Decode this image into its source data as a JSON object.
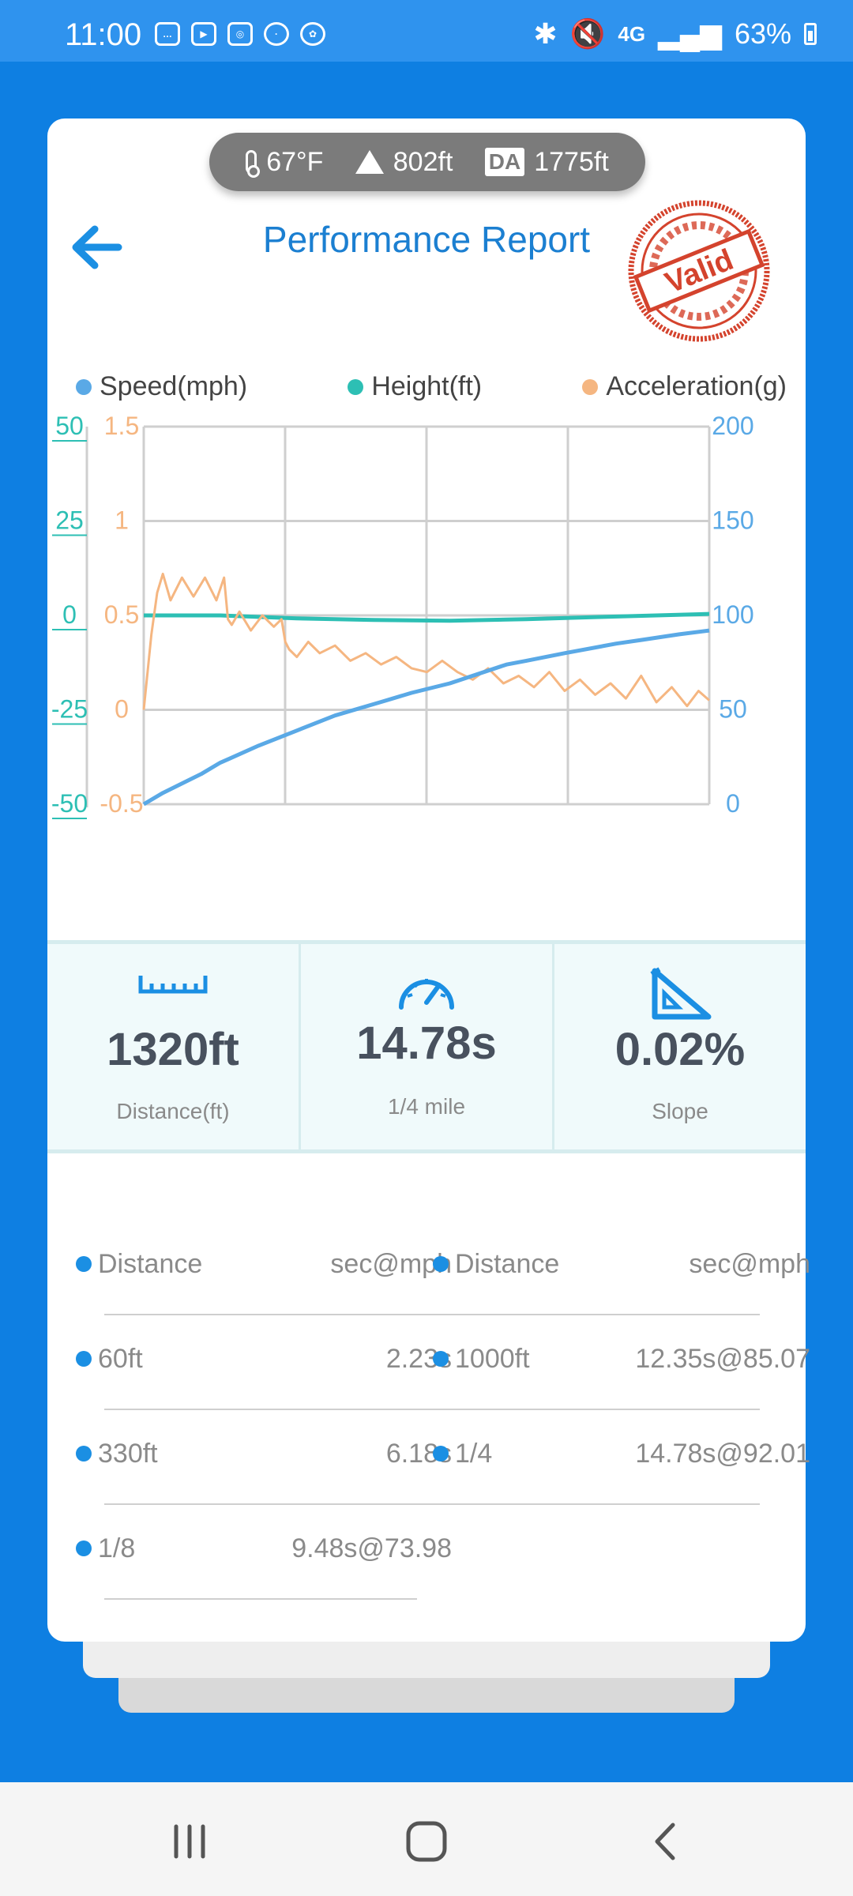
{
  "status_bar": {
    "time": "11:00",
    "network": "4G",
    "battery": "63%",
    "app_icons": [
      "messages-icon",
      "youtube-icon",
      "instagram-icon",
      "app-icon",
      "gallery-icon"
    ]
  },
  "header": {
    "temperature": "67°F",
    "altitude": "802ft",
    "da_label": "DA",
    "density_altitude": "1775ft",
    "title": "Performance Report",
    "stamp_text": "Valid"
  },
  "chart_data": {
    "type": "line",
    "legend": [
      "Speed(mph)",
      "Height(ft)",
      "Acceleration(g)"
    ],
    "height_axis": {
      "ticks": [
        "50",
        "25",
        "0",
        "-25",
        "-50"
      ],
      "range": [
        -50,
        50
      ]
    },
    "accel_axis": {
      "ticks": [
        "1.5",
        "1",
        "0.5",
        "0",
        "-0.5"
      ],
      "range": [
        -0.5,
        1.5
      ]
    },
    "speed_axis": {
      "ticks": [
        "200",
        "150",
        "100",
        "50",
        "0"
      ],
      "range": [
        0,
        200
      ]
    },
    "x_range": [
      0,
      14.78
    ],
    "series": [
      {
        "name": "Speed(mph)",
        "color": "#5aa9e6",
        "x": [
          0,
          0.5,
          1,
          1.5,
          2,
          2.23,
          3,
          4,
          5,
          6.18,
          7,
          8,
          9.48,
          10,
          11,
          12.35,
          13,
          14,
          14.78
        ],
        "y": [
          0,
          6,
          11,
          16,
          22,
          24,
          31,
          39,
          47,
          54,
          59,
          64,
          73.98,
          76,
          80,
          85.07,
          87,
          90,
          92.01
        ]
      },
      {
        "name": "Height(ft)",
        "color": "#2dbfb4",
        "x": [
          0,
          2,
          4,
          6,
          8,
          10,
          12,
          14.78
        ],
        "y": [
          0,
          0,
          -0.8,
          -1.2,
          -1.4,
          -1.0,
          -0.4,
          0.4
        ]
      },
      {
        "name": "Acceleration(g)",
        "color": "#f5b681",
        "x": [
          0,
          0.2,
          0.35,
          0.5,
          0.7,
          1,
          1.3,
          1.6,
          1.9,
          2.1,
          2.2,
          2.3,
          2.5,
          2.8,
          3.1,
          3.4,
          3.6,
          3.7,
          3.8,
          4.0,
          4.3,
          4.6,
          5.0,
          5.4,
          5.8,
          6.2,
          6.6,
          7.0,
          7.4,
          7.8,
          8.2,
          8.6,
          9.0,
          9.4,
          9.8,
          10.2,
          10.6,
          11.0,
          11.4,
          11.8,
          12.2,
          12.6,
          13.0,
          13.4,
          13.8,
          14.2,
          14.5,
          14.78
        ],
        "y": [
          0,
          0.4,
          0.62,
          0.72,
          0.58,
          0.7,
          0.6,
          0.7,
          0.58,
          0.7,
          0.48,
          0.45,
          0.52,
          0.42,
          0.5,
          0.44,
          0.48,
          0.36,
          0.32,
          0.28,
          0.36,
          0.3,
          0.34,
          0.26,
          0.3,
          0.24,
          0.28,
          0.22,
          0.2,
          0.26,
          0.2,
          0.16,
          0.22,
          0.14,
          0.18,
          0.12,
          0.2,
          0.1,
          0.16,
          0.08,
          0.14,
          0.06,
          0.18,
          0.04,
          0.12,
          0.02,
          0.1,
          0.05
        ]
      }
    ]
  },
  "stats": [
    {
      "icon": "ruler-icon",
      "value": "1320ft",
      "label": "Distance(ft)"
    },
    {
      "icon": "speedometer-icon",
      "value": "14.78s",
      "label": "1/4 mile"
    },
    {
      "icon": "slope-icon",
      "value": "0.02%",
      "label": "Slope"
    }
  ],
  "table": {
    "headers": {
      "col1": "Distance",
      "col2": "sec@mph",
      "col3": "Distance",
      "col4": "sec@mph"
    },
    "left_rows": [
      {
        "distance": "60ft",
        "value": "2.23s"
      },
      {
        "distance": "330ft",
        "value": "6.18s"
      },
      {
        "distance": "1/8",
        "value": "9.48s@73.98"
      }
    ],
    "right_rows": [
      {
        "distance": "1000ft",
        "value": "12.35s@85.07"
      },
      {
        "distance": "1/4",
        "value": "14.78s@92.01"
      }
    ]
  }
}
